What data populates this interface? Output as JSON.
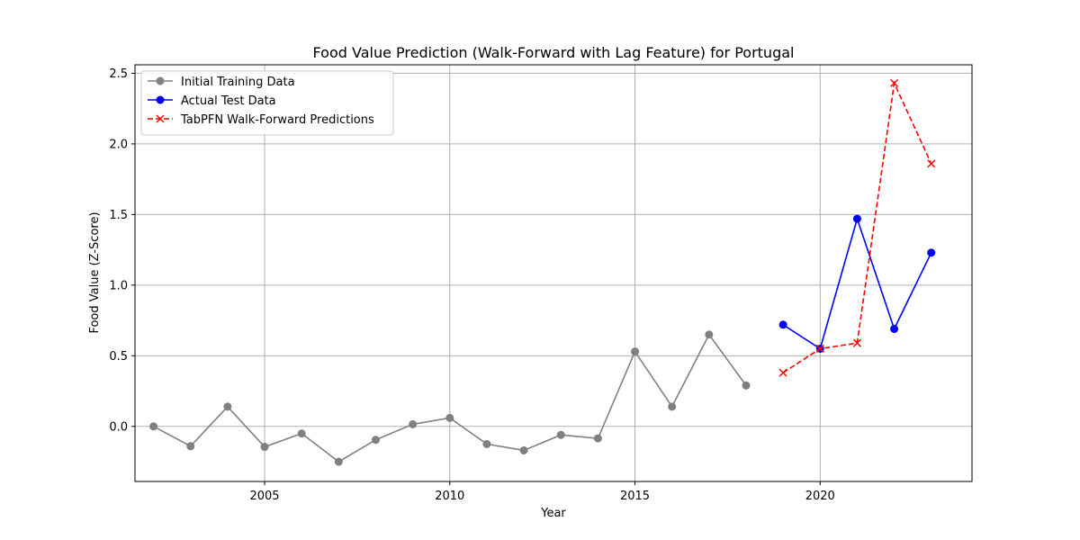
{
  "chart_data": {
    "type": "line",
    "title": "Food Value Prediction (Walk-Forward with Lag Feature) for Portugal",
    "xlabel": "Year",
    "ylabel": "Food Value (Z-Score)",
    "xlim": [
      2001.5,
      2024.1
    ],
    "ylim": [
      -0.39,
      2.56
    ],
    "xticks": [
      2005,
      2010,
      2015,
      2020
    ],
    "yticks": [
      0.0,
      0.5,
      1.0,
      1.5,
      2.0,
      2.5
    ],
    "xtick_labels": [
      "2005",
      "2010",
      "2015",
      "2020"
    ],
    "ytick_labels": [
      "0.0",
      "0.5",
      "1.0",
      "1.5",
      "2.0",
      "2.5"
    ],
    "grid": true,
    "legend_position": "top-left",
    "series": [
      {
        "name": "Initial Training Data",
        "color": "#808080",
        "marker": "circle",
        "linestyle": "solid",
        "x": [
          2002,
          2003,
          2004,
          2005,
          2006,
          2007,
          2008,
          2009,
          2010,
          2011,
          2012,
          2013,
          2014,
          2015,
          2016,
          2017,
          2018
        ],
        "y": [
          0.0,
          -0.14,
          0.14,
          -0.145,
          -0.05,
          -0.25,
          -0.095,
          0.015,
          0.06,
          -0.125,
          -0.17,
          -0.06,
          -0.085,
          0.53,
          0.14,
          0.65,
          0.29
        ]
      },
      {
        "name": "Actual Test Data",
        "color": "#0000ff",
        "marker": "circle",
        "linestyle": "solid",
        "x": [
          2019,
          2020,
          2021,
          2022,
          2023
        ],
        "y": [
          0.72,
          0.55,
          1.47,
          0.69,
          1.23
        ]
      },
      {
        "name": "TabPFN Walk-Forward Predictions",
        "color": "#ff0000",
        "marker": "x",
        "linestyle": "dashed",
        "x": [
          2019,
          2020,
          2021,
          2022,
          2023
        ],
        "y": [
          0.38,
          0.55,
          0.59,
          2.43,
          1.86
        ]
      }
    ]
  }
}
